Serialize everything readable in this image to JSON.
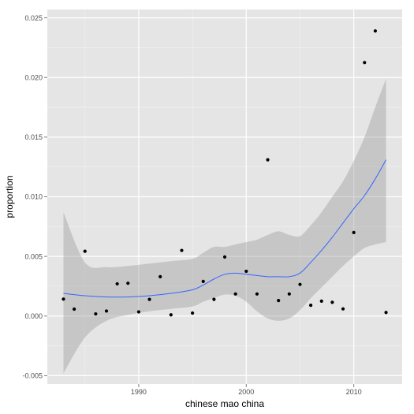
{
  "chart_data": {
    "type": "scatter",
    "xlabel": "chinese mao china",
    "ylabel": "proportion",
    "xlim": [
      1981.5,
      2014.5
    ],
    "ylim": [
      -0.0057,
      0.0257
    ],
    "x_ticks": [
      1990,
      2000,
      2010
    ],
    "x_tick_labels": [
      "1990",
      "2000",
      "2010"
    ],
    "y_ticks": [
      -0.005,
      0.0,
      0.005,
      0.01,
      0.015,
      0.02,
      0.025
    ],
    "y_tick_labels": [
      "-0.005",
      "0.000",
      "0.005",
      "0.010",
      "0.015",
      "0.020",
      "0.025"
    ],
    "grid": true,
    "points": {
      "x": [
        1983,
        1984,
        1985,
        1986,
        1987,
        1988,
        1989,
        1990,
        1991,
        1992,
        1993,
        1994,
        1995,
        1996,
        1997,
        1998,
        1999,
        2000,
        2001,
        2002,
        2003,
        2004,
        2005,
        2006,
        2007,
        2008,
        2009,
        2010,
        2011,
        2012,
        2013
      ],
      "y": [
        0.00142,
        0.00058,
        0.00543,
        0.00018,
        0.00042,
        0.0027,
        0.00275,
        0.00035,
        0.0014,
        0.0033,
        0.0001,
        0.0055,
        0.00025,
        0.0029,
        0.0014,
        0.00495,
        0.00185,
        0.00375,
        0.00185,
        0.0131,
        0.0013,
        0.00185,
        0.00265,
        0.0009,
        0.00125,
        0.00115,
        0.0006,
        0.007,
        0.02125,
        0.0239,
        0.0003
      ]
    },
    "smooth": {
      "x": [
        1983,
        1985,
        1987,
        1989,
        1991,
        1993,
        1995,
        1996,
        1997,
        1998,
        1999,
        2000,
        2001,
        2002,
        2003,
        2004,
        2005,
        2006,
        2007,
        2008,
        2009,
        2010,
        2011,
        2012,
        2013
      ],
      "y": [
        0.0019,
        0.0017,
        0.0016,
        0.0016,
        0.0017,
        0.0019,
        0.0022,
        0.0026,
        0.0031,
        0.0035,
        0.0036,
        0.0035,
        0.0034,
        0.0033,
        0.0033,
        0.0033,
        0.0036,
        0.0045,
        0.0055,
        0.0066,
        0.0078,
        0.009,
        0.0101,
        0.0115,
        0.0131
      ],
      "lower": [
        -0.0048,
        -0.0018,
        -0.0004,
        0.0001,
        0.0004,
        0.0006,
        0.0008,
        0.0012,
        0.0015,
        0.0018,
        0.0017,
        0.0012,
        0.0004,
        -0.0002,
        -0.0004,
        -0.0002,
        0.0005,
        0.0015,
        0.0024,
        0.0033,
        0.0042,
        0.005,
        0.0057,
        0.006,
        0.0062
      ],
      "upper": [
        0.0087,
        0.0045,
        0.0041,
        0.0042,
        0.0044,
        0.0046,
        0.0048,
        0.0053,
        0.0058,
        0.0058,
        0.006,
        0.0062,
        0.0064,
        0.0068,
        0.0071,
        0.0068,
        0.0067,
        0.0076,
        0.0087,
        0.01,
        0.0113,
        0.013,
        0.015,
        0.0175,
        0.0199
      ]
    },
    "colors": {
      "panel": "#e5e5e5",
      "grid_major": "#ffffff",
      "grid_minor": "#f2f2f2",
      "ribbon": "#999999",
      "line": "#3366ff",
      "point": "#000000",
      "tick": "#7f7f7f"
    }
  }
}
